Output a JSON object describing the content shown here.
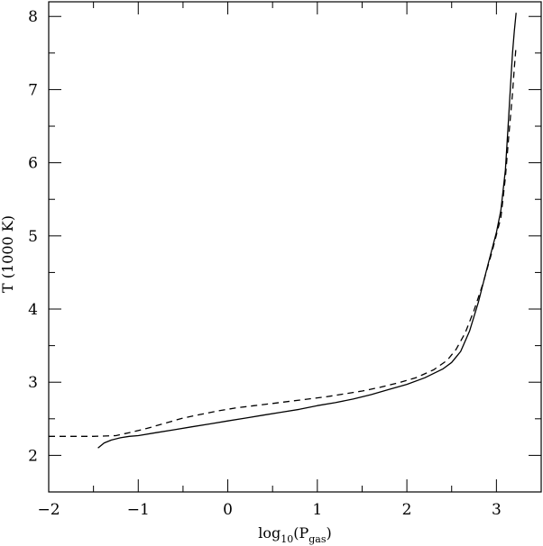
{
  "chart_data": {
    "type": "line",
    "title": "",
    "xlabel": {
      "base": "log",
      "base_sub": "10",
      "open": "(P",
      "var_sub": "gas",
      "close": ")"
    },
    "ylabel": "T (1000 K)",
    "xlim": [
      -2.0,
      3.5
    ],
    "ylim": [
      1.5,
      8.2
    ],
    "x_ticks": [
      -2,
      -1,
      0,
      1,
      2,
      3
    ],
    "x_tick_labels": [
      "−2",
      "−1",
      "0",
      "1",
      "2",
      "3"
    ],
    "y_ticks": [
      2,
      3,
      4,
      5,
      6,
      7,
      8
    ],
    "y_tick_labels": [
      "2",
      "3",
      "4",
      "5",
      "6",
      "7",
      "8"
    ],
    "grid": false,
    "legend": "none",
    "series": [
      {
        "style": "solid",
        "color": "#000000",
        "x": [
          -1.45,
          -1.38,
          -1.3,
          -1.2,
          -1.1,
          -1.0,
          -0.8,
          -0.6,
          -0.4,
          -0.2,
          0.0,
          0.2,
          0.4,
          0.6,
          0.8,
          1.0,
          1.2,
          1.4,
          1.6,
          1.8,
          2.0,
          2.2,
          2.4,
          2.5,
          2.6,
          2.7,
          2.8,
          2.9,
          3.0,
          3.05,
          3.1,
          3.12,
          3.14,
          3.16,
          3.18,
          3.2,
          3.22
        ],
        "y": [
          2.1,
          2.17,
          2.21,
          2.24,
          2.26,
          2.27,
          2.31,
          2.35,
          2.39,
          2.43,
          2.47,
          2.51,
          2.55,
          2.59,
          2.63,
          2.68,
          2.72,
          2.77,
          2.83,
          2.9,
          2.97,
          3.06,
          3.18,
          3.27,
          3.42,
          3.7,
          4.1,
          4.58,
          5.05,
          5.35,
          5.9,
          6.3,
          6.7,
          7.1,
          7.5,
          7.8,
          8.05
        ]
      },
      {
        "style": "dashed",
        "color": "#000000",
        "x": [
          -2.0,
          -1.5,
          -1.25,
          -1.1,
          -0.9,
          -0.7,
          -0.5,
          -0.3,
          -0.1,
          0.1,
          0.3,
          0.5,
          0.7,
          0.9,
          1.1,
          1.3,
          1.5,
          1.7,
          1.9,
          2.1,
          2.3,
          2.45,
          2.55,
          2.65,
          2.75,
          2.85,
          2.95,
          3.05,
          3.1,
          3.14,
          3.18,
          3.2,
          3.22
        ],
        "y": [
          2.26,
          2.26,
          2.27,
          2.31,
          2.37,
          2.44,
          2.51,
          2.56,
          2.61,
          2.65,
          2.68,
          2.71,
          2.74,
          2.77,
          2.8,
          2.84,
          2.88,
          2.93,
          2.99,
          3.06,
          3.17,
          3.3,
          3.45,
          3.67,
          3.98,
          4.35,
          4.78,
          5.25,
          5.8,
          6.4,
          6.95,
          7.3,
          7.6
        ]
      }
    ]
  }
}
